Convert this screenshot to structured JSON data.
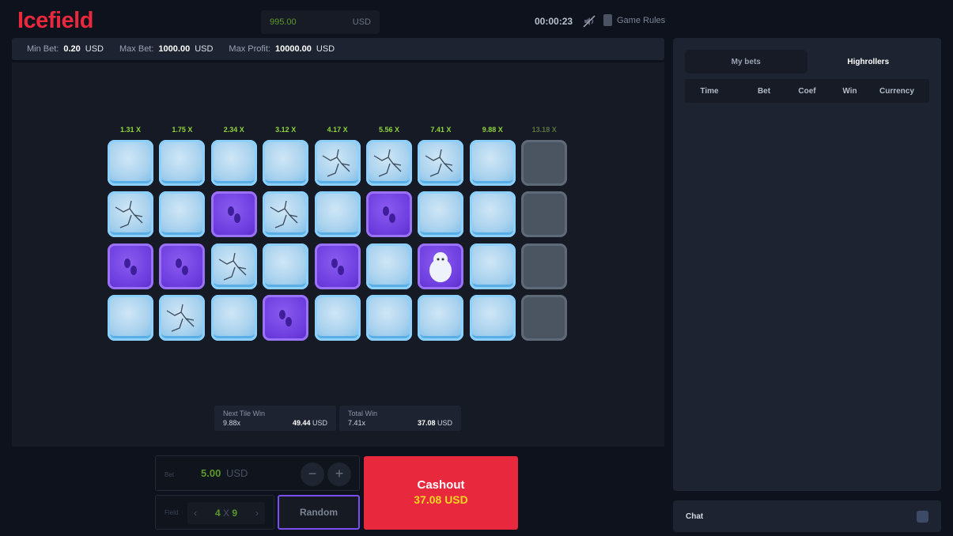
{
  "header": {
    "logo": "Icefield",
    "balance": "995.00",
    "currency": "USD",
    "timer": "00:00:23",
    "sound_icon": "sound-off-icon",
    "rules": "Game Rules"
  },
  "limits": {
    "min_label": "Min Bet:",
    "min": "0.20",
    "max_label": "Max Bet:",
    "max": "1000.00",
    "profit_label": "Max Profit:",
    "profit": "10000.00",
    "currency": "USD"
  },
  "grid": {
    "multipliers": [
      "1.31 X",
      "1.75 X",
      "2.34 X",
      "3.12 X",
      "4.17 X",
      "5.56 X",
      "7.41 X",
      "9.88 X",
      "13.18 X"
    ],
    "rows": [
      [
        "ice",
        "ice",
        "ice",
        "ice",
        "cracked",
        "cracked",
        "cracked",
        "ice",
        "dim"
      ],
      [
        "cracked",
        "ice",
        "purple",
        "cracked",
        "ice",
        "purple",
        "ice",
        "ice",
        "dim"
      ],
      [
        "purple",
        "purple",
        "cracked",
        "ice",
        "purple",
        "ice",
        "yeti",
        "ice",
        "dim"
      ],
      [
        "ice",
        "cracked",
        "ice",
        "purple",
        "ice",
        "ice",
        "ice",
        "ice",
        "dim"
      ]
    ]
  },
  "stats": {
    "next": {
      "label": "Next Tile Win",
      "mult": "9.88x",
      "amount": "49.44",
      "currency": "USD"
    },
    "total": {
      "label": "Total Win",
      "mult": "7.41x",
      "amount": "37.08",
      "currency": "USD"
    }
  },
  "controls": {
    "bet_label": "Bet",
    "bet": "5.00",
    "currency": "USD",
    "minus": "−",
    "plus": "+",
    "field_label": "Field",
    "field_rows": "4",
    "field_x": "X",
    "field_cols": "9",
    "prev": "‹",
    "next": "›",
    "random": "Random",
    "cashout": "Cashout",
    "cashout_amount": "37.08",
    "cashout_currency": "USD"
  },
  "sidebar": {
    "tabs": [
      "My bets",
      "Highrollers"
    ],
    "active_tab": "Highrollers",
    "columns": [
      "Time",
      "Bet",
      "Coef",
      "Win",
      "Currency"
    ],
    "chat": "Chat"
  }
}
